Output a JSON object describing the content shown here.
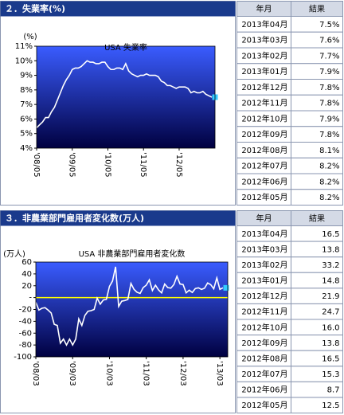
{
  "sections": [
    {
      "title": "２．失業率(%)",
      "table": {
        "columns": [
          "年月",
          "結果"
        ],
        "rows": [
          [
            "2013年04月",
            "7.5%"
          ],
          [
            "2013年03月",
            "7.6%"
          ],
          [
            "2013年02月",
            "7.7%"
          ],
          [
            "2013年01月",
            "7.9%"
          ],
          [
            "2012年12月",
            "7.8%"
          ],
          [
            "2012年11月",
            "7.8%"
          ],
          [
            "2012年10月",
            "7.9%"
          ],
          [
            "2012年09月",
            "7.8%"
          ],
          [
            "2012年08月",
            "8.1%"
          ],
          [
            "2012年07月",
            "8.2%"
          ],
          [
            "2012年06月",
            "8.2%"
          ],
          [
            "2012年05月",
            "8.2%"
          ]
        ]
      }
    },
    {
      "title": "３．非農業部門雇用者変化数(万人)",
      "table": {
        "columns": [
          "年月",
          "結果"
        ],
        "rows": [
          [
            "2013年04月",
            "16.5"
          ],
          [
            "2013年03月",
            "13.8"
          ],
          [
            "2013年02月",
            "33.2"
          ],
          [
            "2013年01月",
            "14.8"
          ],
          [
            "2012年12月",
            "21.9"
          ],
          [
            "2012年11月",
            "24.7"
          ],
          [
            "2012年10月",
            "16.0"
          ],
          [
            "2012年09月",
            "13.8"
          ],
          [
            "2012年08月",
            "16.5"
          ],
          [
            "2012年07月",
            "15.3"
          ],
          [
            "2012年06月",
            "8.7"
          ],
          [
            "2012年05月",
            "12.5"
          ]
        ]
      }
    }
  ],
  "chart_data": [
    {
      "type": "line",
      "title": "USA 失業率",
      "y_label": "(%)",
      "categories": [
        "'08/05",
        null,
        null,
        null,
        null,
        null,
        null,
        null,
        null,
        null,
        null,
        null,
        "'09/05",
        null,
        null,
        null,
        null,
        null,
        null,
        null,
        null,
        null,
        null,
        null,
        "'10/05",
        null,
        null,
        null,
        null,
        null,
        null,
        null,
        null,
        null,
        null,
        null,
        "'11/05",
        null,
        null,
        null,
        null,
        null,
        null,
        null,
        null,
        null,
        null,
        null,
        "'12/05",
        null,
        null,
        null,
        null,
        null,
        null,
        null,
        null,
        null,
        null,
        null
      ],
      "series": [
        {
          "color": "#ffffff",
          "marker_color": "#33ccff",
          "values": [
            5.4,
            5.6,
            5.8,
            6.1,
            6.1,
            6.5,
            6.8,
            7.3,
            7.8,
            8.3,
            8.7,
            9.0,
            9.4,
            9.5,
            9.5,
            9.6,
            9.8,
            10.0,
            9.9,
            9.9,
            9.8,
            9.8,
            9.9,
            9.9,
            9.6,
            9.4,
            9.4,
            9.5,
            9.5,
            9.4,
            9.8,
            9.3,
            9.1,
            9.0,
            8.9,
            9.0,
            9.0,
            9.1,
            9.0,
            9.0,
            9.0,
            8.9,
            8.6,
            8.5,
            8.3,
            8.3,
            8.2,
            8.1,
            8.2,
            8.2,
            8.2,
            8.1,
            7.8,
            7.9,
            7.8,
            7.8,
            7.9,
            7.7,
            7.6,
            7.5
          ]
        }
      ],
      "ylim": [
        4,
        11
      ],
      "yticks": [
        {
          "value": 4,
          "label": "4%"
        },
        {
          "value": 5,
          "label": "5%"
        },
        {
          "value": 6,
          "label": "6%"
        },
        {
          "value": 7,
          "label": "7%"
        },
        {
          "value": 8,
          "label": "8%"
        },
        {
          "value": 9,
          "label": "9%"
        },
        {
          "value": 10,
          "label": "10%"
        },
        {
          "value": 11,
          "label": "11%"
        }
      ]
    },
    {
      "type": "line",
      "title": "USA 非農業部門雇用者変化数",
      "y_label": "(万人)",
      "categories": [
        "'08/03",
        null,
        null,
        null,
        null,
        null,
        null,
        null,
        null,
        null,
        null,
        null,
        "'09/03",
        null,
        null,
        null,
        null,
        null,
        null,
        null,
        null,
        null,
        null,
        null,
        "'10/03",
        null,
        null,
        null,
        null,
        null,
        null,
        null,
        null,
        null,
        null,
        null,
        "'11/03",
        null,
        null,
        null,
        null,
        null,
        null,
        null,
        null,
        null,
        null,
        null,
        "'12/03",
        null,
        null,
        null,
        null,
        null,
        null,
        null,
        null,
        null,
        null,
        null,
        "'13/03",
        null
      ],
      "series": [
        {
          "color": "#ffffff",
          "marker_color": "#33ccff",
          "values": [
            -8,
            -21,
            -18,
            -17,
            -21,
            -26,
            -45,
            -47,
            -77,
            -70,
            -80,
            -70,
            -80,
            -70,
            -36,
            -47,
            -30,
            -23,
            -22,
            -20,
            -1,
            -11,
            -4,
            -3,
            19,
            28,
            52,
            -15,
            -6,
            -5,
            -3,
            24,
            14,
            9,
            7,
            17,
            21,
            30,
            12,
            21,
            13,
            8,
            23,
            17,
            16,
            22,
            36,
            23,
            22,
            8,
            12.5,
            8.7,
            15.3,
            16.5,
            13.8,
            16.0,
            24.7,
            21.9,
            14.8,
            33.2,
            13.8,
            16.5
          ]
        }
      ],
      "zero_line_color": "#ffff00",
      "ylim": [
        -100,
        60
      ],
      "yticks": [
        -100,
        -80,
        -60,
        -40,
        -20,
        {
          "value": 0,
          "label": "-"
        },
        20,
        40,
        60
      ]
    }
  ]
}
